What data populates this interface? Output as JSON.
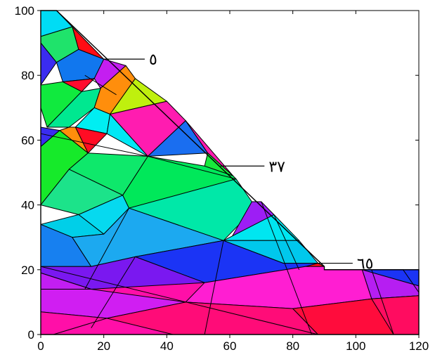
{
  "chart_data": {
    "type": "mesh",
    "title": "",
    "xlabel": "",
    "ylabel": "",
    "xlim": [
      0,
      120
    ],
    "ylim": [
      0,
      100
    ],
    "x_ticks": [
      {
        "value": 0,
        "label": "0"
      },
      {
        "value": 20,
        "label": "20"
      },
      {
        "value": 40,
        "label": "40"
      },
      {
        "value": 60,
        "label": "60"
      },
      {
        "value": 80,
        "label": "80"
      },
      {
        "value": 100,
        "label": "100"
      },
      {
        "value": 120,
        "label": "120"
      }
    ],
    "y_ticks": [
      {
        "value": 0,
        "label": "0"
      },
      {
        "value": 20,
        "label": "20"
      },
      {
        "value": 40,
        "label": "40"
      },
      {
        "value": 60,
        "label": "60"
      },
      {
        "value": 80,
        "label": "80"
      },
      {
        "value": 100,
        "label": "100"
      }
    ],
    "grid": false,
    "domain_outline": [
      [
        0,
        0
      ],
      [
        120,
        0
      ],
      [
        120,
        20
      ],
      [
        90,
        20
      ],
      [
        90,
        21
      ],
      [
        5,
        100
      ],
      [
        0,
        100
      ]
    ],
    "elements": [
      {
        "points": [
          [
            0,
            0
          ],
          [
            88,
            0
          ],
          [
            115,
            20
          ],
          [
            90,
            20
          ],
          [
            90,
            21
          ],
          [
            0,
            21
          ]
        ],
        "color": "#ff0fa8"
      },
      {
        "points": [
          [
            0,
            100
          ],
          [
            5,
            100
          ],
          [
            10,
            95
          ],
          [
            0,
            92
          ]
        ],
        "color": "#00dcf5"
      },
      {
        "points": [
          [
            10,
            95
          ],
          [
            20,
            85
          ],
          [
            12,
            88
          ]
        ],
        "color": "#ff0c14"
      },
      {
        "points": [
          [
            0,
            92
          ],
          [
            10,
            95
          ],
          [
            12,
            88
          ],
          [
            5,
            84
          ],
          [
            0,
            90
          ]
        ],
        "color": "#1fe36b"
      },
      {
        "points": [
          [
            0,
            90
          ],
          [
            5,
            84
          ],
          [
            0,
            77
          ]
        ],
        "color": "#3a2cf0"
      },
      {
        "points": [
          [
            5,
            84
          ],
          [
            12,
            88
          ],
          [
            20,
            85
          ],
          [
            17,
            79
          ],
          [
            7,
            78
          ]
        ],
        "color": "#1177ee"
      },
      {
        "points": [
          [
            20,
            85
          ],
          [
            27,
            83
          ],
          [
            19,
            76
          ],
          [
            17,
            79
          ]
        ],
        "color": "#c41ef0"
      },
      {
        "points": [
          [
            0,
            77
          ],
          [
            7,
            78
          ],
          [
            13,
            75
          ],
          [
            2,
            64
          ],
          [
            0,
            70
          ]
        ],
        "color": "#10ea3e"
      },
      {
        "points": [
          [
            7,
            78
          ],
          [
            17,
            79
          ],
          [
            13,
            75
          ]
        ],
        "color": "#ff0c2e"
      },
      {
        "points": [
          [
            13,
            75
          ],
          [
            19,
            76
          ],
          [
            17,
            70
          ],
          [
            9,
            64
          ],
          [
            2,
            64
          ]
        ],
        "color": "#00e890"
      },
      {
        "points": [
          [
            19,
            76
          ],
          [
            27,
            83
          ],
          [
            30,
            79
          ],
          [
            22,
            68
          ],
          [
            17,
            70
          ]
        ],
        "color": "#ff8e0c"
      },
      {
        "points": [
          [
            30,
            79
          ],
          [
            40,
            72
          ],
          [
            22,
            68
          ]
        ],
        "color": "#bff00e"
      },
      {
        "points": [
          [
            22,
            68
          ],
          [
            40,
            72
          ],
          [
            46,
            66
          ],
          [
            34,
            55
          ]
        ],
        "color": "#ff1cb0"
      },
      {
        "points": [
          [
            17,
            70
          ],
          [
            22,
            68
          ],
          [
            21,
            62
          ],
          [
            11,
            64
          ]
        ],
        "color": "#00eef2"
      },
      {
        "points": [
          [
            11,
            64
          ],
          [
            21,
            62
          ],
          [
            15,
            56
          ]
        ],
        "color": "#ff0c24"
      },
      {
        "points": [
          [
            9,
            64
          ],
          [
            11,
            64
          ],
          [
            15,
            56
          ],
          [
            6,
            63
          ]
        ],
        "color": "#ff8e0c"
      },
      {
        "points": [
          [
            21,
            62
          ],
          [
            34,
            55
          ],
          [
            22,
            68
          ]
        ],
        "color": "#00e8f5"
      },
      {
        "points": [
          [
            0,
            64
          ],
          [
            6,
            63
          ],
          [
            0,
            58
          ]
        ],
        "color": "#3a2cf0"
      },
      {
        "points": [
          [
            46,
            66
          ],
          [
            34,
            55
          ],
          [
            53,
            56
          ]
        ],
        "color": "#1a6ef0"
      },
      {
        "points": [
          [
            46,
            66
          ],
          [
            53,
            56
          ],
          [
            61,
            49
          ]
        ],
        "color": "#ff1cb0"
      },
      {
        "points": [
          [
            53,
            56
          ],
          [
            61,
            49
          ],
          [
            52,
            52
          ]
        ],
        "color": "#18ea3b"
      },
      {
        "points": [
          [
            34,
            55
          ],
          [
            52,
            52
          ],
          [
            61,
            49
          ],
          [
            62,
            48
          ],
          [
            28,
            39
          ],
          [
            26,
            43
          ]
        ],
        "color": "#00e85a"
      },
      {
        "points": [
          [
            0,
            58
          ],
          [
            6,
            63
          ],
          [
            15,
            56
          ],
          [
            9,
            51
          ],
          [
            0,
            40
          ]
        ],
        "color": "#16ea2a"
      },
      {
        "points": [
          [
            15,
            56
          ],
          [
            34,
            55
          ],
          [
            26,
            43
          ],
          [
            9,
            51
          ]
        ],
        "color": "#0ee86b"
      },
      {
        "points": [
          [
            62,
            48
          ],
          [
            67,
            41
          ],
          [
            70,
            41
          ],
          [
            58,
            29
          ],
          [
            28,
            39
          ]
        ],
        "color": "#00e8a8"
      },
      {
        "points": [
          [
            0,
            40
          ],
          [
            9,
            51
          ],
          [
            26,
            43
          ],
          [
            12,
            37
          ]
        ],
        "color": "#1ce38a"
      },
      {
        "points": [
          [
            12,
            37
          ],
          [
            26,
            43
          ],
          [
            28,
            39
          ],
          [
            20,
            31
          ]
        ],
        "color": "#06d9ef"
      },
      {
        "points": [
          [
            0,
            34
          ],
          [
            12,
            37
          ],
          [
            20,
            31
          ],
          [
            10,
            30
          ]
        ],
        "color": "#00cfe8"
      },
      {
        "points": [
          [
            67,
            41
          ],
          [
            70,
            41
          ],
          [
            74,
            37
          ],
          [
            60,
            29
          ]
        ],
        "color": "#9d1ef5"
      },
      {
        "points": [
          [
            74,
            37
          ],
          [
            82,
            29
          ],
          [
            58,
            29
          ]
        ],
        "color": "#00e6f0"
      },
      {
        "points": [
          [
            82,
            29
          ],
          [
            88,
            22
          ],
          [
            77,
            22
          ],
          [
            58,
            29
          ]
        ],
        "color": "#00c8ec"
      },
      {
        "points": [
          [
            0,
            34
          ],
          [
            10,
            30
          ],
          [
            16,
            21
          ],
          [
            0,
            21
          ]
        ],
        "color": "#1780f0"
      },
      {
        "points": [
          [
            10,
            30
          ],
          [
            20,
            31
          ],
          [
            28,
            39
          ],
          [
            58,
            29
          ],
          [
            30,
            24
          ],
          [
            16,
            21
          ]
        ],
        "color": "#1ca9f0"
      },
      {
        "points": [
          [
            58,
            29
          ],
          [
            77,
            22
          ],
          [
            88,
            22
          ],
          [
            90,
            21
          ],
          [
            84,
            21
          ],
          [
            52,
            16
          ],
          [
            30,
            24
          ]
        ],
        "color": "#1b34f5"
      },
      {
        "points": [
          [
            84,
            21
          ],
          [
            88,
            22
          ],
          [
            90,
            21
          ]
        ],
        "color": "#ff0c14"
      },
      {
        "points": [
          [
            0,
            21
          ],
          [
            16,
            21
          ],
          [
            30,
            24
          ],
          [
            52,
            16
          ],
          [
            16,
            14
          ],
          [
            0,
            19
          ]
        ],
        "color": "#7a18f0"
      },
      {
        "points": [
          [
            0,
            19
          ],
          [
            16,
            14
          ],
          [
            0,
            14
          ]
        ],
        "color": "#c21ef2"
      },
      {
        "points": [
          [
            90,
            20
          ],
          [
            115,
            20
          ],
          [
            120,
            20
          ],
          [
            120,
            15
          ],
          [
            102,
            20
          ]
        ],
        "color": "#1b34f5"
      },
      {
        "points": [
          [
            102,
            20
          ],
          [
            120,
            15
          ],
          [
            120,
            12
          ],
          [
            105,
            11
          ]
        ],
        "color": "#b61ef2"
      },
      {
        "points": [
          [
            52,
            16
          ],
          [
            84,
            21
          ],
          [
            90,
            21
          ],
          [
            90,
            20
          ],
          [
            102,
            20
          ],
          [
            105,
            11
          ],
          [
            80,
            8
          ],
          [
            46,
            10
          ]
        ],
        "color": "#ff1ed2"
      },
      {
        "points": [
          [
            0,
            14
          ],
          [
            16,
            14
          ],
          [
            46,
            10
          ],
          [
            21,
            5
          ],
          [
            0,
            7
          ]
        ],
        "color": "#d01ef2"
      },
      {
        "points": [
          [
            0,
            7
          ],
          [
            21,
            5
          ],
          [
            4,
            0
          ],
          [
            0,
            0
          ]
        ],
        "color": "#ff0fa8"
      },
      {
        "points": [
          [
            21,
            5
          ],
          [
            46,
            10
          ],
          [
            80,
            8
          ],
          [
            88,
            0
          ],
          [
            42,
            0
          ]
        ],
        "color": "#ff0c78"
      },
      {
        "points": [
          [
            80,
            8
          ],
          [
            105,
            11
          ],
          [
            120,
            12
          ],
          [
            120,
            0
          ],
          [
            88,
            0
          ]
        ],
        "color": "#ff0c3c"
      },
      {
        "points": [
          [
            105,
            11
          ],
          [
            120,
            12
          ],
          [
            120,
            0
          ],
          [
            112,
            0
          ]
        ],
        "color": "#ff0c60"
      }
    ],
    "edges": [
      [
        [
          0,
          21
        ],
        [
          88,
          0
        ]
      ],
      [
        [
          30,
          24
        ],
        [
          16,
          2
        ]
      ],
      [
        [
          58,
          29
        ],
        [
          52,
          0
        ]
      ],
      [
        [
          70,
          41
        ],
        [
          86,
          0
        ]
      ],
      [
        [
          0,
          62
        ],
        [
          34,
          55
        ]
      ],
      [
        [
          34,
          55
        ],
        [
          62,
          48
        ]
      ],
      [
        [
          14,
          80
        ],
        [
          24,
          74
        ]
      ],
      [
        [
          28,
          39
        ],
        [
          14,
          14
        ]
      ],
      [
        [
          74,
          37
        ],
        [
          82,
          20
        ]
      ],
      [
        [
          105,
          20
        ],
        [
          112,
          0
        ]
      ],
      [
        [
          115,
          20
        ],
        [
          120,
          13
        ]
      ]
    ],
    "annotations": [
      {
        "text": "٥",
        "x": 20,
        "y": 85,
        "label_x": 33,
        "label_y": 85
      },
      {
        "text": "٣٧",
        "x": 57,
        "y": 52,
        "label_x": 71,
        "label_y": 52
      },
      {
        "text": "٦٥",
        "x": 86,
        "y": 22,
        "label_x": 99,
        "label_y": 22
      }
    ],
    "colors": {
      "frame": "#000000",
      "background": "#ffffff"
    }
  }
}
